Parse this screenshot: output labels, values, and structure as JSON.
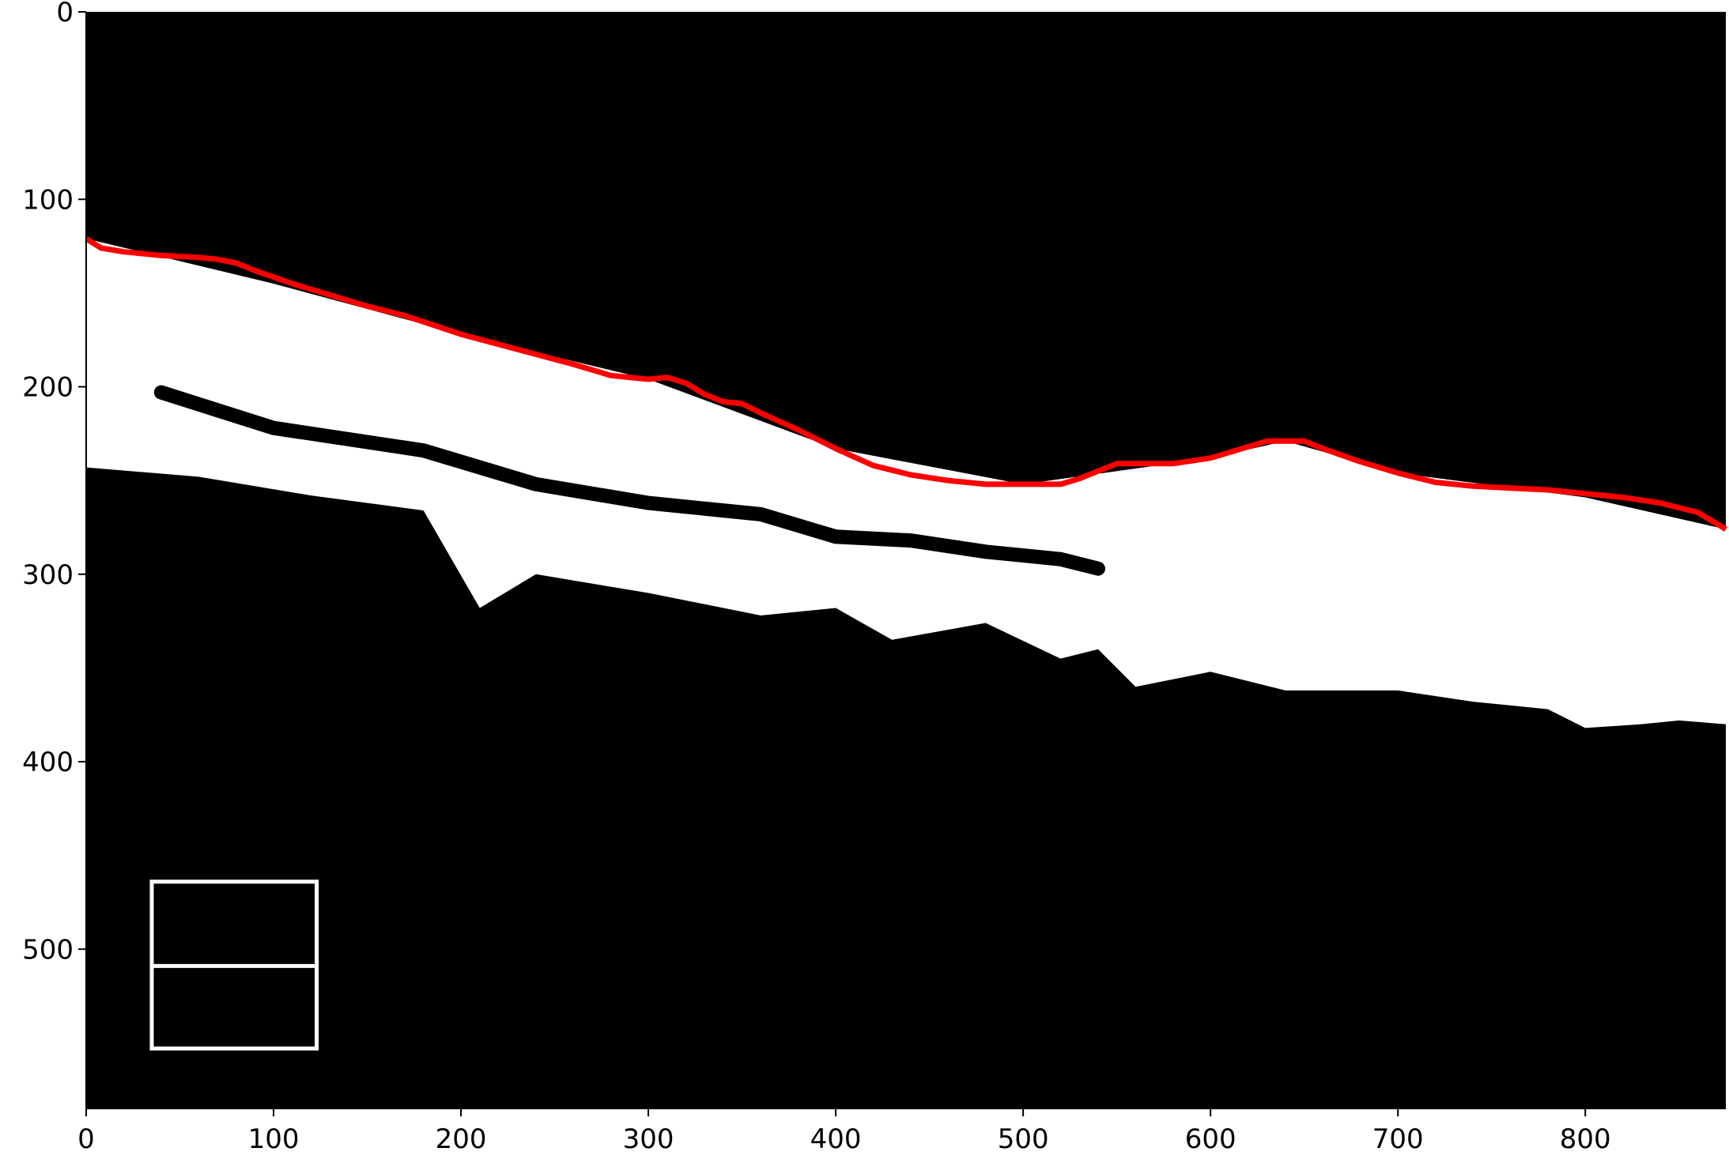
{
  "colors": {
    "background": "#000000",
    "mask": "#ffffff",
    "boundary_line": "#ff0000",
    "axis": "#000000"
  },
  "chart_data": {
    "type": "image",
    "title": "",
    "xlabel": "",
    "ylabel": "",
    "xlim": [
      0,
      875
    ],
    "ylim": [
      585,
      0
    ],
    "xticks": [
      "0",
      "100",
      "200",
      "300",
      "400",
      "500",
      "600",
      "700",
      "800"
    ],
    "xtick_values": [
      0,
      100,
      200,
      300,
      400,
      500,
      600,
      700,
      800
    ],
    "yticks": [
      "0",
      "100",
      "200",
      "300",
      "400",
      "500"
    ],
    "ytick_values": [
      0,
      100,
      200,
      300,
      400,
      500
    ],
    "grid": false,
    "boundary_line": {
      "color": "#ff0000",
      "x": [
        0,
        8,
        20,
        40,
        60,
        70,
        80,
        90,
        110,
        130,
        150,
        170,
        200,
        230,
        260,
        280,
        300,
        310,
        320,
        330,
        340,
        350,
        360,
        380,
        400,
        420,
        440,
        460,
        480,
        500,
        520,
        530,
        540,
        550,
        560,
        580,
        600,
        620,
        630,
        650,
        660,
        680,
        700,
        720,
        740,
        760,
        780,
        800,
        820,
        840,
        860,
        875
      ],
      "y": [
        121,
        126,
        128,
        130,
        131,
        132,
        134,
        138,
        145,
        151,
        157,
        162,
        172,
        180,
        188,
        194,
        196,
        195,
        198,
        204,
        208,
        209,
        214,
        223,
        233,
        242,
        247,
        250,
        252,
        252,
        252,
        249,
        245,
        241,
        241,
        241,
        238,
        232,
        229,
        229,
        233,
        240,
        246,
        251,
        253,
        254,
        255,
        257,
        259,
        262,
        267,
        276
      ]
    },
    "mask_band": {
      "upper_edge": {
        "x": [
          0,
          100,
          200,
          300,
          400,
          500,
          600,
          640,
          700,
          800,
          875
        ],
        "y": [
          121,
          145,
          172,
          196,
          233,
          252,
          238,
          229,
          246,
          259,
          276
        ]
      },
      "lower_edge": {
        "x": [
          0,
          60,
          120,
          180,
          210,
          240,
          300,
          360,
          400,
          430,
          480,
          520,
          540,
          560,
          600,
          640,
          700,
          740,
          780,
          800,
          830,
          850,
          875
        ],
        "y": [
          243,
          248,
          258,
          266,
          318,
          300,
          310,
          322,
          318,
          335,
          326,
          345,
          340,
          360,
          352,
          362,
          362,
          368,
          372,
          382,
          380,
          378,
          380
        ]
      },
      "dark_inclusions": [
        {
          "x": [
            40,
            100,
            180,
            240,
            300,
            360,
            400,
            440,
            480,
            520,
            540
          ],
          "y": [
            203,
            222,
            234,
            252,
            262,
            268,
            280,
            282,
            288,
            292,
            297
          ]
        }
      ]
    },
    "inset_box": {
      "x": [
        35,
        123
      ],
      "y": [
        464,
        553
      ],
      "divider_y": 509,
      "color": "#ffffff"
    }
  }
}
